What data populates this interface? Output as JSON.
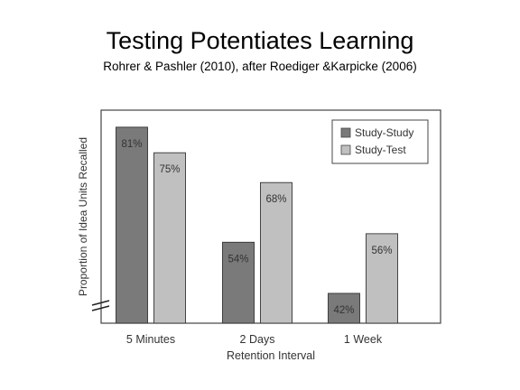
{
  "header": {
    "title": "Testing Potentiates Learning",
    "subtitle": "Rohrer & Pashler (2010), after Roediger &Karpicke (2006)"
  },
  "chart_data": {
    "type": "bar",
    "categories": [
      "5 Minutes",
      "2 Days",
      "1 Week"
    ],
    "series": [
      {
        "name": "Study-Study",
        "values": [
          81,
          54,
          42
        ],
        "labels": [
          "81%",
          "54%",
          "42%"
        ],
        "color": "#7a7a7a"
      },
      {
        "name": "Study-Test",
        "values": [
          75,
          68,
          56
        ],
        "labels": [
          "75%",
          "68%",
          "56%"
        ],
        "color": "#c0c0c0"
      }
    ],
    "xlabel": "Retention Interval",
    "ylabel": "Proportion of Idea Units Recalled",
    "ylim": [
      35,
      85
    ],
    "y_axis_break": true,
    "grid": false,
    "legend_position": "top-right",
    "unit": "%"
  }
}
